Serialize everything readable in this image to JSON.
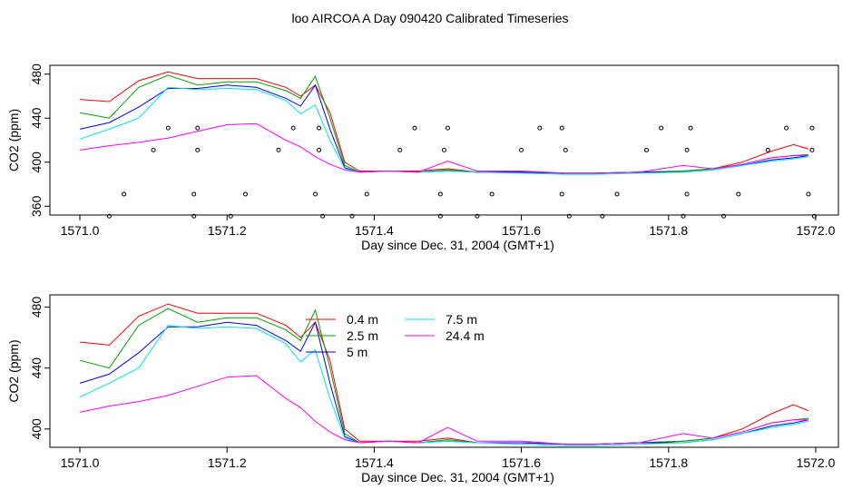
{
  "title": "loo AIRCOA A  Day 090420  Calibrated Timeseries",
  "colors": {
    "0.4 m": "#ff0000",
    "2.5 m": "#00a000",
    "5 m": "#0000ff",
    "7.5 m": "#00e5e5",
    "24.4 m": "#ff00ff",
    "points": "#000000"
  },
  "legend": [
    "0.4 m",
    "2.5 m",
    "5 m",
    "7.5 m",
    "24.4 m"
  ],
  "chart_data": [
    {
      "type": "line",
      "panel": "top",
      "xlabel": "Day since Dec. 31, 2004 (GMT+1)",
      "ylabel": "CO2 (ppm)",
      "xlim": [
        1571.0,
        1572.0
      ],
      "ylim": [
        352,
        488
      ],
      "xticks": [
        "1571.0",
        "1571.2",
        "1571.4",
        "1571.6",
        "1571.8",
        "1572.0"
      ],
      "yticks": [
        "360",
        "400",
        "440",
        "480"
      ],
      "grid": false,
      "x": [
        1571.0,
        1571.04,
        1571.08,
        1571.12,
        1571.16,
        1571.2,
        1571.24,
        1571.28,
        1571.3,
        1571.32,
        1571.34,
        1571.36,
        1571.38,
        1571.42,
        1571.46,
        1571.5,
        1571.54,
        1571.6,
        1571.66,
        1571.7,
        1571.76,
        1571.82,
        1571.86,
        1571.9,
        1571.94,
        1571.97,
        1571.99
      ],
      "series": [
        {
          "name": "0.4 m",
          "values": [
            457,
            455,
            474,
            482,
            476,
            476,
            476,
            468,
            460,
            470,
            445,
            400,
            392,
            392,
            392,
            394,
            391,
            391,
            390,
            390,
            391,
            392,
            394,
            400,
            410,
            416,
            412
          ]
        },
        {
          "name": "2.5 m",
          "values": [
            445,
            440,
            468,
            479,
            470,
            473,
            473,
            465,
            458,
            478,
            440,
            397,
            391,
            392,
            391,
            393,
            391,
            391,
            390,
            390,
            391,
            392,
            394,
            398,
            404,
            406,
            407
          ]
        },
        {
          "name": "5 m",
          "values": [
            430,
            436,
            450,
            467,
            467,
            470,
            468,
            458,
            451,
            470,
            430,
            395,
            391,
            392,
            391,
            392,
            391,
            391,
            390,
            390,
            391,
            391,
            393,
            397,
            402,
            404,
            406
          ]
        },
        {
          "name": "7.5 m",
          "values": [
            421,
            430,
            440,
            468,
            466,
            467,
            466,
            456,
            444,
            452,
            420,
            394,
            391,
            392,
            391,
            392,
            391,
            390,
            389,
            389,
            390,
            391,
            393,
            397,
            401,
            403,
            405
          ]
        },
        {
          "name": "24.4 m",
          "values": [
            411,
            415,
            418,
            422,
            428,
            434,
            435,
            420,
            414,
            405,
            398,
            393,
            391,
            392,
            391,
            401,
            392,
            392,
            390,
            390,
            391,
            397,
            394,
            398,
            404,
            406,
            406
          ]
        }
      ],
      "points": {
        "x": [
          1571.04,
          1571.06,
          1571.1,
          1571.12,
          1571.155,
          1571.155,
          1571.16,
          1571.16,
          1571.205,
          1571.225,
          1571.27,
          1571.29,
          1571.32,
          1571.325,
          1571.325,
          1571.33,
          1571.37,
          1571.39,
          1571.435,
          1571.455,
          1571.49,
          1571.49,
          1571.495,
          1571.5,
          1571.54,
          1571.56,
          1571.6,
          1571.625,
          1571.655,
          1571.655,
          1571.66,
          1571.665,
          1571.71,
          1571.73,
          1571.77,
          1571.79,
          1571.82,
          1571.825,
          1571.825,
          1571.83,
          1571.875,
          1571.895,
          1571.935,
          1571.96,
          1571.99,
          1571.995,
          1571.995,
          1571.998
        ],
        "y": [
          351,
          371,
          411,
          431,
          351,
          371,
          411,
          431,
          351,
          371,
          411,
          431,
          371,
          431,
          411,
          351,
          351,
          371,
          411,
          431,
          351,
          371,
          411,
          431,
          351,
          371,
          411,
          431,
          371,
          431,
          411,
          351,
          351,
          371,
          411,
          431,
          351,
          371,
          411,
          431,
          351,
          371,
          411,
          431,
          371,
          431,
          411,
          351
        ]
      }
    },
    {
      "type": "line",
      "panel": "bottom",
      "xlabel": "Day since Dec. 31, 2004 (GMT+1)",
      "ylabel": "CO2 (ppm)",
      "xlim": [
        1571.0,
        1572.0
      ],
      "ylim": [
        388,
        488
      ],
      "xticks": [
        "1571.0",
        "1571.2",
        "1571.4",
        "1571.6",
        "1571.8",
        "1572.0"
      ],
      "yticks": [
        "400",
        "440",
        "480"
      ],
      "grid": false,
      "legend_position": "top-center",
      "x": [
        1571.0,
        1571.04,
        1571.08,
        1571.12,
        1571.16,
        1571.2,
        1571.24,
        1571.28,
        1571.3,
        1571.32,
        1571.34,
        1571.36,
        1571.38,
        1571.42,
        1571.46,
        1571.5,
        1571.54,
        1571.6,
        1571.66,
        1571.7,
        1571.76,
        1571.82,
        1571.86,
        1571.9,
        1571.94,
        1571.97,
        1571.99
      ],
      "series": [
        {
          "name": "0.4 m",
          "values": [
            457,
            455,
            474,
            482,
            476,
            476,
            476,
            468,
            460,
            470,
            445,
            400,
            392,
            392,
            392,
            394,
            391,
            391,
            390,
            390,
            391,
            392,
            394,
            400,
            410,
            416,
            412
          ]
        },
        {
          "name": "2.5 m",
          "values": [
            445,
            440,
            468,
            479,
            470,
            473,
            473,
            465,
            458,
            478,
            440,
            397,
            391,
            392,
            391,
            393,
            391,
            391,
            390,
            390,
            391,
            392,
            394,
            398,
            404,
            406,
            407
          ]
        },
        {
          "name": "5 m",
          "values": [
            430,
            436,
            450,
            467,
            467,
            470,
            468,
            458,
            451,
            470,
            430,
            395,
            391,
            392,
            391,
            392,
            391,
            391,
            390,
            390,
            391,
            391,
            393,
            397,
            402,
            404,
            406
          ]
        },
        {
          "name": "7.5 m",
          "values": [
            421,
            430,
            440,
            468,
            466,
            467,
            466,
            456,
            444,
            452,
            420,
            394,
            391,
            392,
            391,
            392,
            391,
            390,
            389,
            389,
            390,
            391,
            393,
            397,
            401,
            403,
            405
          ]
        },
        {
          "name": "24.4 m",
          "values": [
            411,
            415,
            418,
            422,
            428,
            434,
            435,
            420,
            414,
            405,
            398,
            393,
            391,
            392,
            391,
            401,
            392,
            392,
            390,
            390,
            391,
            397,
            394,
            398,
            404,
            406,
            406
          ]
        }
      ]
    }
  ]
}
